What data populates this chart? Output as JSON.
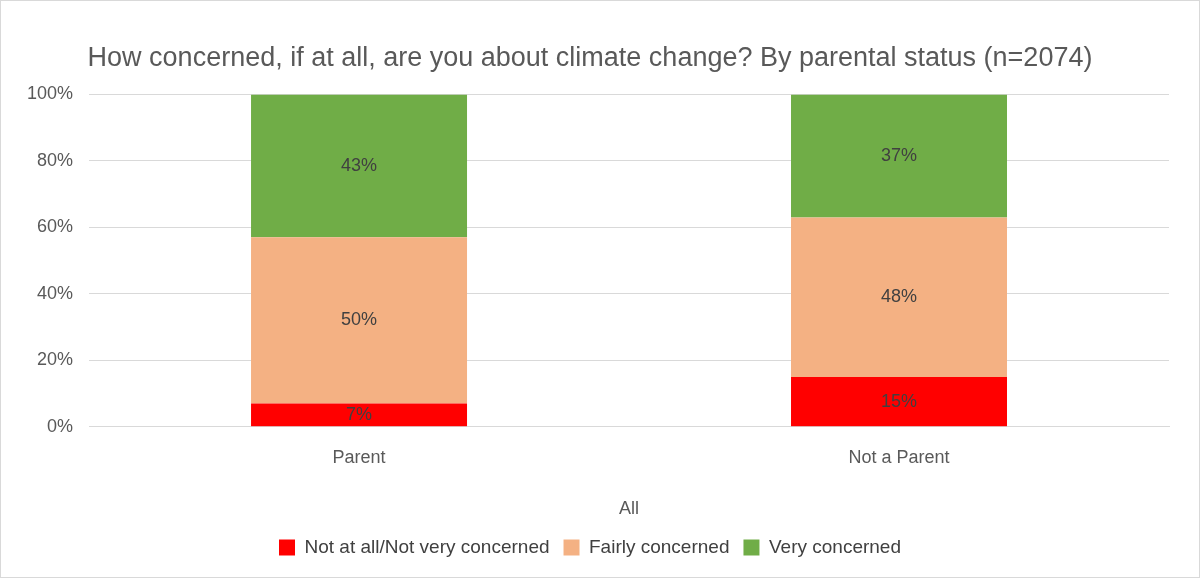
{
  "chart_data": {
    "type": "bar",
    "title": "How concerned, if at all, are you about climate change? By parental status (n=2074)",
    "xlabel": "All",
    "categories": [
      "Parent",
      "Not a Parent"
    ],
    "stacked": true,
    "series": [
      {
        "name": "Not at all/Not very concerned",
        "color": "#ff0000",
        "values": [
          7,
          15
        ],
        "value_labels": [
          "7%",
          "15%"
        ]
      },
      {
        "name": "Fairly concerned",
        "color": "#f4b183",
        "values": [
          50,
          48
        ],
        "value_labels": [
          "50%",
          "48%"
        ]
      },
      {
        "name": "Very concerned",
        "color": "#70ad47",
        "values": [
          43,
          37
        ],
        "value_labels": [
          "43%",
          "37%"
        ]
      }
    ],
    "ylim": [
      0,
      100
    ],
    "yticks": [
      {
        "value": 0,
        "label": "0%"
      },
      {
        "value": 20,
        "label": "20%"
      },
      {
        "value": 40,
        "label": "40%"
      },
      {
        "value": 60,
        "label": "60%"
      },
      {
        "value": 80,
        "label": "80%"
      },
      {
        "value": 100,
        "label": "100%"
      }
    ],
    "grid": "y",
    "legend": "bottom"
  }
}
